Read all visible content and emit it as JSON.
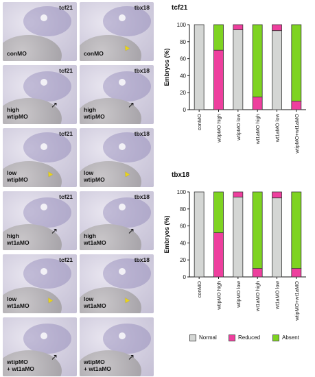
{
  "panels": {
    "rows": [
      {
        "left": {
          "gene": "tcf21",
          "label": "conMO",
          "arrow": "none"
        },
        "right": {
          "gene": "tbx18",
          "label": "conMO",
          "arrow": "yellow"
        }
      },
      {
        "left": {
          "gene": "tcf21",
          "label": "high\nwtipMO",
          "arrow": "black"
        },
        "right": {
          "gene": "tbx18",
          "label": "high\nwtipMO",
          "arrow": "black"
        }
      },
      {
        "left": {
          "gene": "tcf21",
          "label": "low\nwtipMO",
          "arrow": "yellow"
        },
        "right": {
          "gene": "tbx18",
          "label": "low\nwtipMO",
          "arrow": "yellow"
        }
      },
      {
        "left": {
          "gene": "tcf21",
          "label": "high\nwt1aMO",
          "arrow": "black"
        },
        "right": {
          "gene": "tbx18",
          "label": "high\nwt1aMO",
          "arrow": "black"
        }
      },
      {
        "left": {
          "gene": "tcf21",
          "label": "low\nwt1aMO",
          "arrow": "yellow"
        },
        "right": {
          "gene": "tbx18",
          "label": "low\nwt1aMO",
          "arrow": "yellow"
        }
      },
      {
        "left": {
          "gene": "",
          "label": "wtipMO\n+ wt1aMO",
          "arrow": "black"
        },
        "right": {
          "gene": "",
          "label": "wtipMO\n+ wt1aMO",
          "arrow": "black"
        }
      }
    ]
  },
  "colors": {
    "Normal": "#d4d6d4",
    "Reduced": "#ee3f9e",
    "Absent": "#7ed321"
  },
  "chart_data": [
    {
      "type": "bar",
      "stacked": true,
      "title": "tcf21",
      "ylabel": "Embryos (%)",
      "ylim": [
        0,
        100
      ],
      "yticks": [
        0,
        20,
        40,
        60,
        80,
        100
      ],
      "categories": [
        "conMO",
        "wtipMO high",
        "wtipMO low",
        "wt1aMO high",
        "wt1aMO low",
        "wtipMO+wt1aMO"
      ],
      "series": [
        {
          "name": "Normal",
          "values": [
            100,
            0,
            94,
            0,
            93,
            0
          ]
        },
        {
          "name": "Reduced",
          "values": [
            0,
            70,
            6,
            15,
            7,
            10
          ]
        },
        {
          "name": "Absent",
          "values": [
            0,
            30,
            0,
            85,
            0,
            90
          ]
        }
      ]
    },
    {
      "type": "bar",
      "stacked": true,
      "title": "tbx18",
      "ylabel": "Embryos (%)",
      "ylim": [
        0,
        100
      ],
      "yticks": [
        0,
        20,
        40,
        60,
        80,
        100
      ],
      "categories": [
        "conMO",
        "wtipMO high",
        "wtipMO low",
        "wt1aMO high",
        "wt1aMO low",
        "wtipMO+wt1aMO"
      ],
      "series": [
        {
          "name": "Normal",
          "values": [
            100,
            0,
            94,
            0,
            93,
            0
          ]
        },
        {
          "name": "Reduced",
          "values": [
            0,
            52,
            6,
            10,
            7,
            10
          ]
        },
        {
          "name": "Absent",
          "values": [
            0,
            48,
            0,
            90,
            0,
            90
          ]
        }
      ]
    }
  ],
  "legend": {
    "items": [
      "Normal",
      "Reduced",
      "Absent"
    ],
    "position": "bottom"
  }
}
